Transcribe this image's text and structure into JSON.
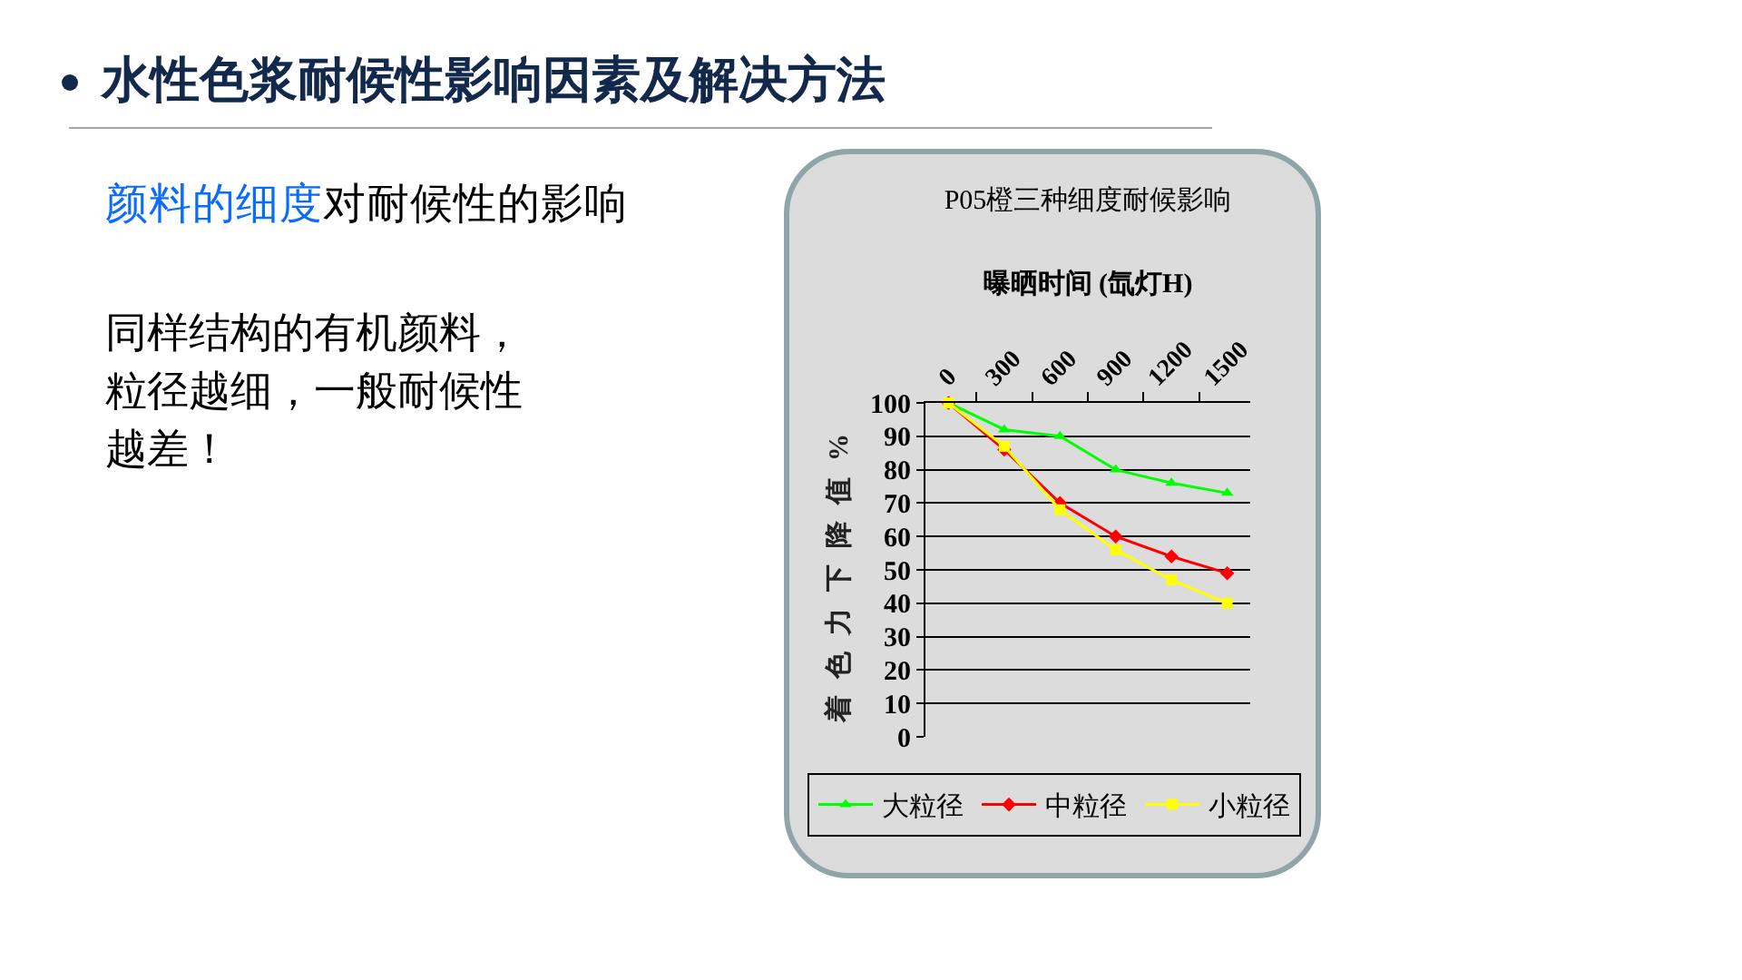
{
  "chart_data": {
    "type": "line",
    "title": "水性色浆耐候性影响因素及解决方法",
    "subtitle": "P05橙三种细度耐候影响",
    "xlabel": "曝晒时间 (氙灯H)",
    "ylabel": "着色力下降值%",
    "annotations": [
      "颜料的细度",
      "对耐候性的影响",
      "同样结构的有机颜料，粒径越细，一般耐候性越差！"
    ],
    "categories": [
      "0",
      "300",
      "600",
      "900",
      "1200",
      "1500"
    ],
    "series": [
      {
        "name": "大粒径",
        "color": "#00ff00",
        "marker": "triangle",
        "values": [
          100,
          92,
          90,
          80,
          76,
          73
        ]
      },
      {
        "name": "中粒径",
        "color": "#ff0000",
        "marker": "diamond",
        "values": [
          100,
          86,
          70,
          60,
          54,
          49
        ]
      },
      {
        "name": "小粒径",
        "color": "#ffff00",
        "marker": "square",
        "values": [
          100,
          87,
          68,
          56,
          47,
          40
        ]
      }
    ],
    "ylim": [
      0,
      100
    ],
    "yticks": [
      0,
      10,
      20,
      30,
      40,
      50,
      60,
      70,
      80,
      90,
      100
    ],
    "grid": "y",
    "legend": "bottom",
    "line_style": "solid"
  }
}
